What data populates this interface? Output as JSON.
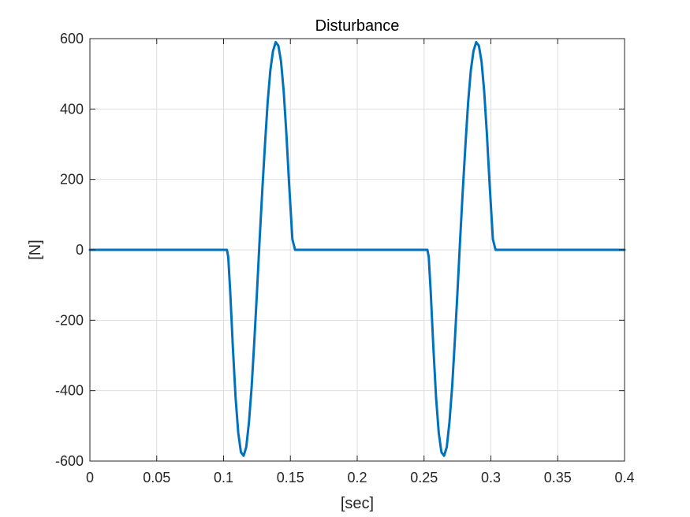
{
  "chart_data": {
    "type": "line",
    "title": "Disturbance",
    "xlabel": "[sec]",
    "ylabel": "[N]",
    "xlim": [
      0,
      0.4
    ],
    "ylim": [
      -600,
      600
    ],
    "xticks": [
      0,
      0.05,
      0.1,
      0.15,
      0.2,
      0.25,
      0.3,
      0.35,
      0.4
    ],
    "xtick_labels": [
      "0",
      "0.05",
      "0.1",
      "0.15",
      "0.2",
      "0.25",
      "0.3",
      "0.35",
      "0.4"
    ],
    "yticks": [
      -600,
      -400,
      -200,
      0,
      200,
      400,
      600
    ],
    "ytick_labels": [
      "-600",
      "-400",
      "-200",
      "0",
      "200",
      "400",
      "600"
    ],
    "grid": true,
    "legend": "none",
    "line_color": "#0072BD",
    "series": [
      {
        "x": [
          0,
          0.1025,
          0.1035,
          0.105,
          0.107,
          0.109,
          0.111,
          0.113,
          0.115,
          0.117,
          0.119,
          0.121,
          0.123,
          0.125,
          0.127,
          0.129,
          0.131,
          0.133,
          0.135,
          0.137,
          0.139,
          0.141,
          0.143,
          0.145,
          0.147,
          0.149,
          0.1515,
          0.1535,
          0.154,
          0.2525,
          0.2535,
          0.255,
          0.257,
          0.259,
          0.261,
          0.263,
          0.265,
          0.267,
          0.269,
          0.271,
          0.273,
          0.275,
          0.277,
          0.279,
          0.281,
          0.283,
          0.285,
          0.287,
          0.289,
          0.291,
          0.293,
          0.295,
          0.297,
          0.299,
          0.3015,
          0.3035,
          0.304,
          0.4
        ],
        "y": [
          0,
          0,
          -20,
          -120,
          -280,
          -420,
          -520,
          -575,
          -585,
          -560,
          -490,
          -390,
          -260,
          -120,
          30,
          170,
          300,
          420,
          510,
          565,
          590,
          580,
          535,
          450,
          330,
          190,
          30,
          0,
          0,
          0,
          -20,
          -120,
          -280,
          -420,
          -520,
          -575,
          -585,
          -560,
          -490,
          -390,
          -260,
          -120,
          30,
          170,
          300,
          420,
          510,
          565,
          590,
          580,
          535,
          450,
          330,
          190,
          30,
          0,
          0,
          0
        ]
      }
    ]
  }
}
